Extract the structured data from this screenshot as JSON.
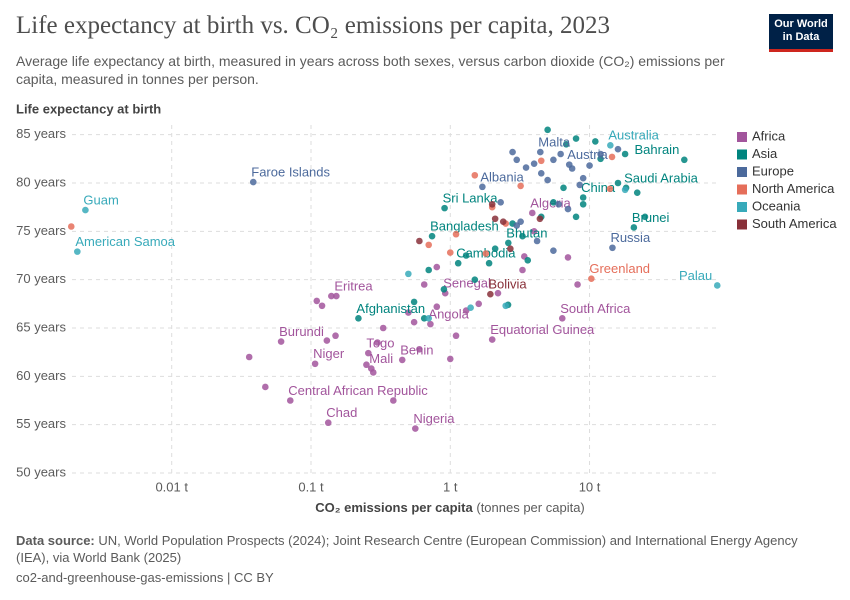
{
  "chart_data": {
    "type": "scatter",
    "title": "Life expectancy at birth vs. CO₂ emissions per capita, 2023",
    "subtitle": "Average life expectancy at birth, measured in years across both sexes, versus carbon dioxide (CO₂) emissions per capita, measured in tonnes per person.",
    "y_label": "Life expectancy at birth",
    "x_label": "CO₂ emissions per capita",
    "x_label_unit": "(tonnes per capita)",
    "source_label": "Data source:",
    "source": "UN, World Population Prospects (2024); Joint Research Centre (European Commission) and International Energy Agency (IEA), via World Bank (2025)",
    "footer": "co2-and-greenhouse-gas-emissions | CC BY",
    "logo": [
      "Our World",
      "in Data"
    ],
    "x_scale": "log",
    "grid": true,
    "legend": "right",
    "xlim": [
      0.0018,
      85
    ],
    "ylim": [
      50,
      86
    ],
    "xticks": [
      {
        "value": 0.01,
        "label": "0.01 t"
      },
      {
        "value": 0.1,
        "label": "0.1 t"
      },
      {
        "value": 1,
        "label": "1 t"
      },
      {
        "value": 10,
        "label": "10 t"
      }
    ],
    "yticks": [
      {
        "value": 50,
        "label": "50 years"
      },
      {
        "value": 55,
        "label": "55 years"
      },
      {
        "value": 60,
        "label": "60 years"
      },
      {
        "value": 65,
        "label": "65 years"
      },
      {
        "value": 70,
        "label": "70 years"
      },
      {
        "value": 75,
        "label": "75 years"
      },
      {
        "value": 80,
        "label": "80 years"
      },
      {
        "value": 85,
        "label": "85 years"
      }
    ],
    "series": [
      {
        "name": "Africa",
        "color": "#a2559c",
        "x": [
          0.152,
          0.061,
          0.107,
          0.258,
          0.271,
          0.452,
          0.071,
          0.133,
          0.561,
          0.92,
          0.72,
          2.0,
          6.37,
          3.88,
          0.036,
          0.047,
          0.11,
          0.12,
          0.14,
          0.13,
          0.15,
          0.25,
          0.3,
          0.33,
          0.5,
          0.6,
          0.55,
          0.8,
          0.65,
          1.1,
          1.3,
          1.6,
          0.8,
          3.3,
          3.4,
          1.0,
          0.39,
          0.28,
          2.2,
          4.0,
          7.0,
          8.2
        ],
        "values": [
          68.3,
          63.6,
          61.3,
          62.4,
          60.8,
          61.7,
          57.5,
          55.2,
          54.6,
          68.6,
          65.4,
          63.8,
          66.0,
          76.9,
          62.0,
          58.9,
          67.8,
          67.3,
          68.3,
          63.7,
          64.2,
          61.2,
          63.5,
          65.0,
          66.6,
          62.8,
          65.6,
          67.2,
          69.5,
          64.2,
          66.8,
          67.5,
          71.3,
          71.0,
          72.4,
          61.8,
          57.5,
          60.4,
          68.6,
          75.0,
          72.3,
          69.5
        ],
        "labels": [
          "Eritrea",
          "Burundi",
          "Niger",
          "Togo",
          "Mali",
          "Benin",
          "Central African Republic",
          "Chad",
          "Nigeria",
          "Senegal",
          "Angola",
          "Equatorial Guinea",
          "South Africa",
          "Algeria",
          null,
          null,
          null,
          null,
          null,
          null,
          null,
          null,
          null,
          null,
          null,
          null,
          null,
          null,
          null,
          null,
          null,
          null,
          null,
          null,
          null,
          null,
          null,
          null,
          null,
          null,
          null,
          null
        ]
      },
      {
        "name": "Asia",
        "color": "#00847e",
        "x": [
          0.219,
          0.74,
          0.91,
          1.14,
          2.61,
          9.0,
          47.9,
          18.3,
          20.8,
          0.55,
          0.65,
          0.7,
          0.9,
          1.3,
          1.5,
          2.1,
          2.8,
          3.3,
          4.5,
          5.5,
          6.5,
          8.0,
          9.0,
          11,
          12,
          16,
          18,
          22,
          25,
          6.8,
          3.6,
          2.6,
          1.9,
          8,
          5
        ],
        "values": [
          66.0,
          74.5,
          77.4,
          71.7,
          73.8,
          78.5,
          82.4,
          79.5,
          75.4,
          67.7,
          66.0,
          71.0,
          69.0,
          72.5,
          70.0,
          73.2,
          75.8,
          74.5,
          76.5,
          78.0,
          79.5,
          76.5,
          77.8,
          84.3,
          82.5,
          80.0,
          83.0,
          79.0,
          76.5,
          84.0,
          72.0,
          67.4,
          71.7,
          84.6,
          85.5
        ],
        "labels": [
          "Afghanistan",
          "Bangladesh",
          "Sri Lanka",
          "Cambodia",
          "Bhutan",
          "China",
          "Bahrain",
          "Saudi Arabia",
          "Brunei",
          null,
          null,
          null,
          null,
          null,
          null,
          null,
          null,
          null,
          null,
          null,
          null,
          null,
          null,
          null,
          null,
          null,
          null,
          null,
          null,
          null,
          null,
          null,
          null,
          null,
          null
        ]
      },
      {
        "name": "Europe",
        "color": "#4c6a9c",
        "x": [
          0.0385,
          4.43,
          7.15,
          1.7,
          14.6,
          2.8,
          3.0,
          3.5,
          4.0,
          4.5,
          5.0,
          5.5,
          6.2,
          7.5,
          8.5,
          9.0,
          10,
          12,
          16,
          6.0,
          7.0,
          4.2,
          3.2,
          5.5,
          3.0,
          2.3
        ],
        "values": [
          80.1,
          83.2,
          81.9,
          79.6,
          73.3,
          83.2,
          82.4,
          81.6,
          82.0,
          81.0,
          80.3,
          82.4,
          83.0,
          81.5,
          79.8,
          80.5,
          81.8,
          83.0,
          83.5,
          77.8,
          77.3,
          74.0,
          76.0,
          73.0,
          75.6,
          78.0
        ],
        "labels": [
          "Faroe Islands",
          "Malta",
          "Austria",
          "Albania",
          "Russia",
          null,
          null,
          null,
          null,
          null,
          null,
          null,
          null,
          null,
          null,
          null,
          null,
          null,
          null,
          null,
          null,
          null,
          null,
          null,
          null,
          null
        ]
      },
      {
        "name": "North America",
        "color": "#e56e5a",
        "x": [
          10.3,
          0.0019,
          0.7,
          1.1,
          1.5,
          2.0,
          2.5,
          3.2,
          4.5,
          14,
          14.5,
          1.8,
          1.0
        ],
        "values": [
          70.1,
          75.5,
          73.6,
          74.7,
          80.8,
          77.5,
          75.8,
          79.7,
          82.3,
          79.4,
          82.7,
          72.7,
          72.8
        ],
        "labels": [
          "Greenland",
          null,
          null,
          null,
          null,
          null,
          null,
          null,
          null,
          null,
          null,
          null,
          null
        ]
      },
      {
        "name": "Oceania",
        "color": "#38aaba",
        "x": [
          0.0024,
          0.0021,
          14.1,
          82.6,
          0.5,
          0.7,
          1.4,
          2.5,
          18
        ],
        "values": [
          77.2,
          72.9,
          83.9,
          69.4,
          70.6,
          66.0,
          67.1,
          67.3,
          79.3
        ],
        "labels": [
          "Guam",
          "American Samoa",
          "Australia",
          "Palau",
          null,
          null,
          null,
          null,
          null
        ]
      },
      {
        "name": "South America",
        "color": "#883039",
        "x": [
          1.94,
          0.6,
          2.1,
          2.4,
          2.7,
          4.4,
          2.0
        ],
        "values": [
          68.5,
          74.0,
          76.3,
          76.0,
          73.2,
          76.3,
          77.8
        ],
        "labels": [
          "Bolivia",
          null,
          null,
          null,
          null,
          null,
          null
        ]
      }
    ]
  }
}
